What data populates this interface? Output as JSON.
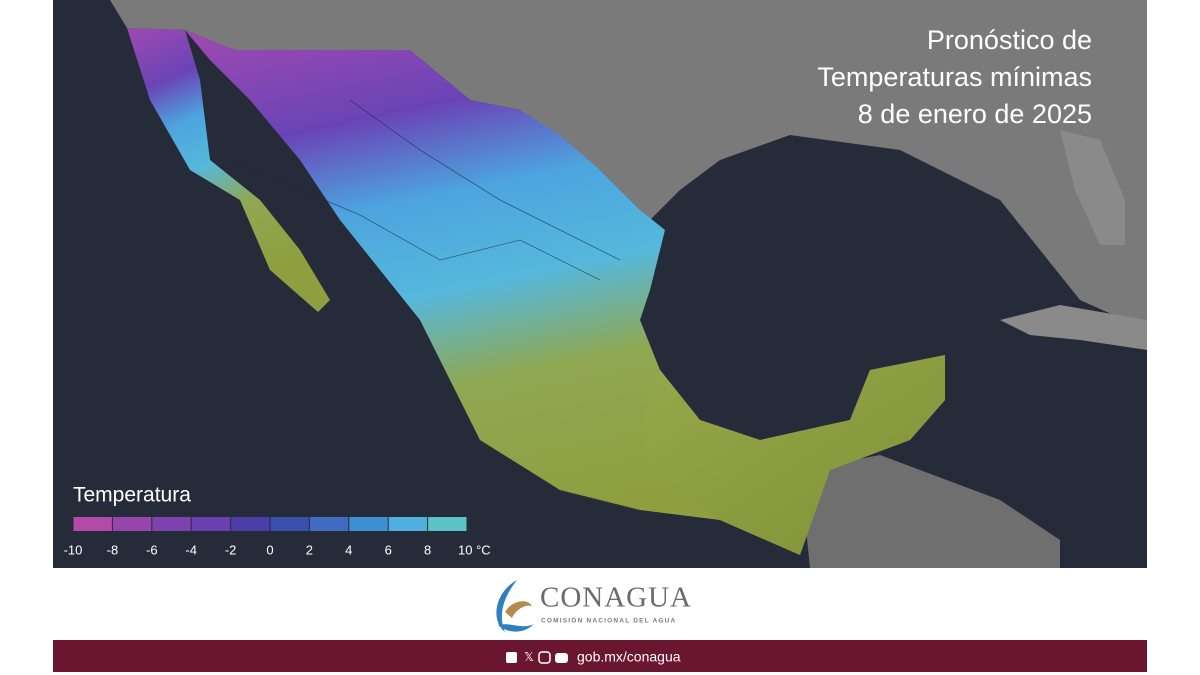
{
  "header": {
    "title_lines": [
      "Pronóstico de",
      "Temperaturas mínimas",
      "8 de enero de 2025"
    ]
  },
  "legend": {
    "title": "Temperatura",
    "ticks": [
      -10,
      -8,
      -6,
      -4,
      -2,
      0,
      2,
      4,
      6,
      8,
      {
        "value": 10,
        "label": "10 °C"
      }
    ],
    "colors": [
      "#b24aa8",
      "#9646ab",
      "#7c43ae",
      "#6a40b0",
      "#4c3da8",
      "#3b4faf",
      "#3f6cc2",
      "#3f90d3",
      "#4fb0df",
      "#5bc3c6"
    ]
  },
  "logo": {
    "name": "CONAGUA",
    "subtitle": "COMISIÓN NACIONAL DEL AGUA"
  },
  "footer": {
    "url": "gob.mx/conagua"
  }
}
